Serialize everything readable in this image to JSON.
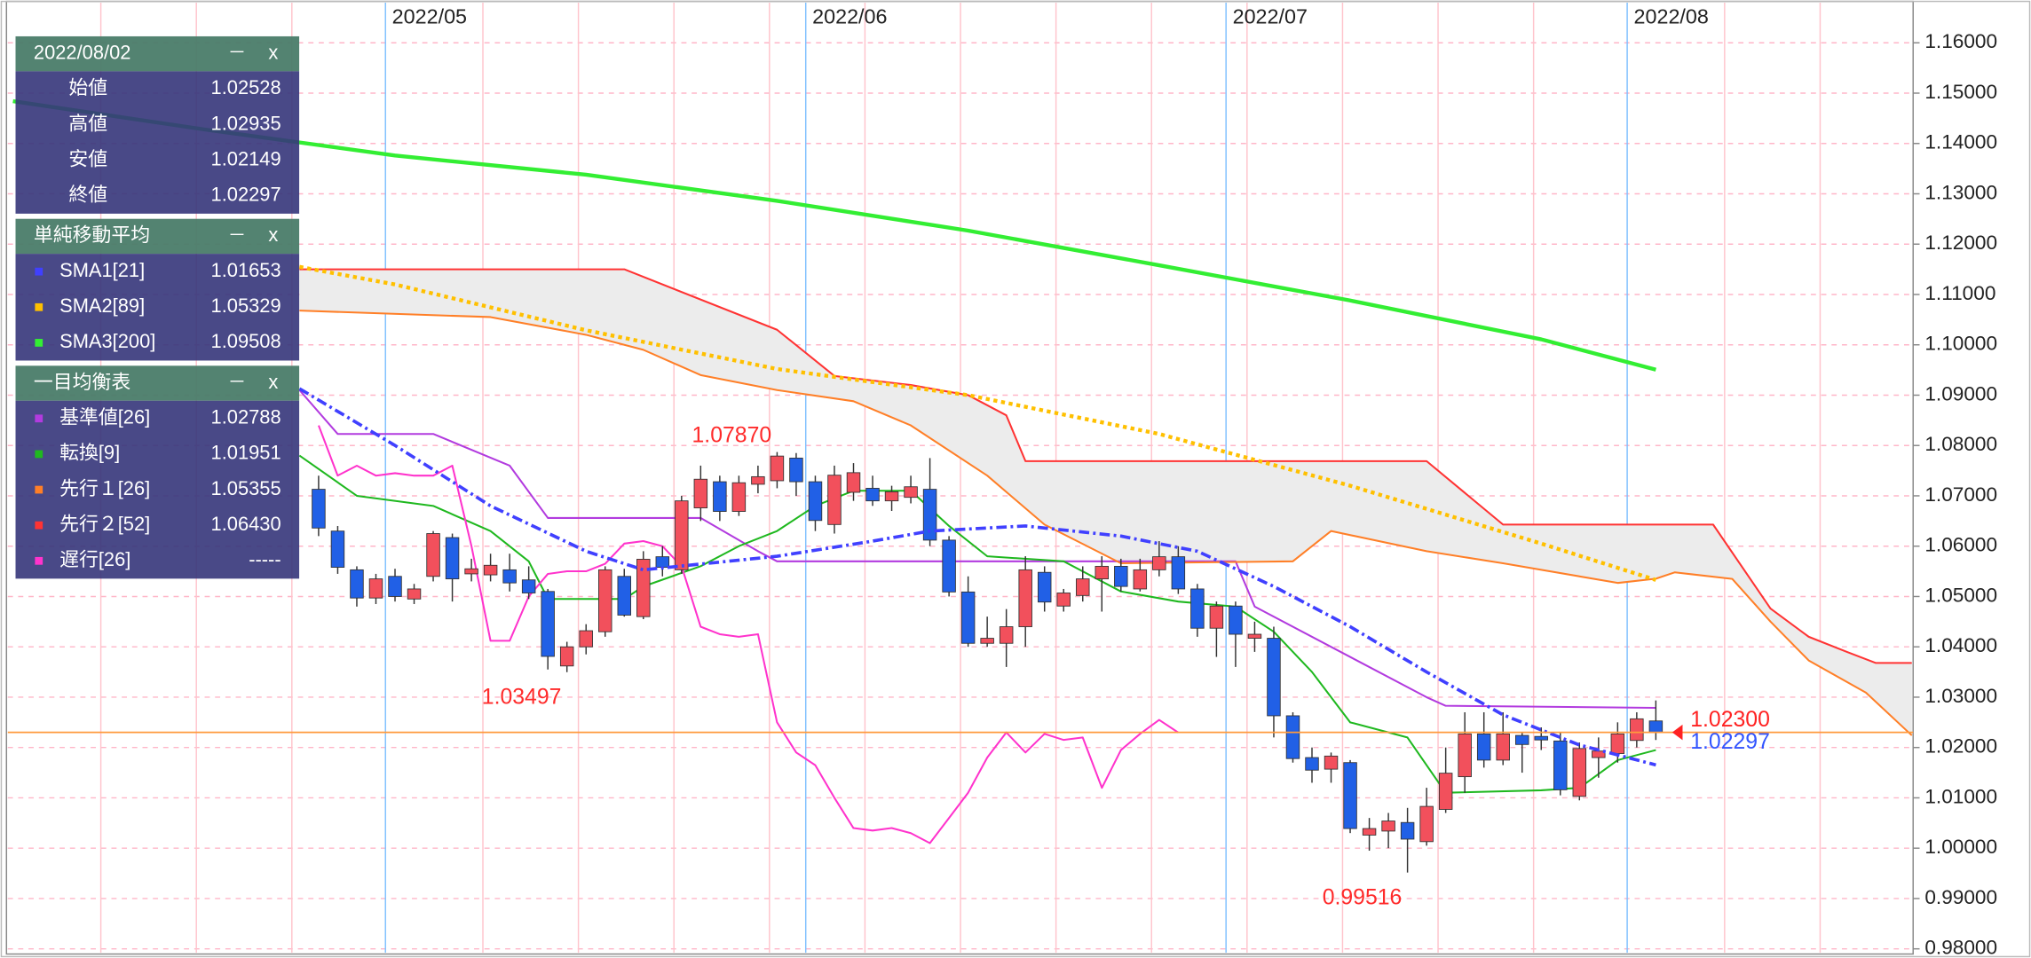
{
  "chart_data": {
    "type": "candlestick",
    "xlim": [
      0,
      99.4
    ],
    "ylim": [
      0.98,
      1.1672
    ],
    "yticks": [
      {
        "value": 0.98,
        "label": "0.98000"
      },
      {
        "value": 0.99,
        "label": "0.99000"
      },
      {
        "value": 1,
        "label": "1.00000"
      },
      {
        "value": 1.01,
        "label": "1.01000"
      },
      {
        "value": 1.02,
        "label": "1.02000"
      },
      {
        "value": 1.03,
        "label": "1.03000"
      },
      {
        "value": 1.04,
        "label": "1.04000"
      },
      {
        "value": 1.05,
        "label": "1.05000"
      },
      {
        "value": 1.06,
        "label": "1.06000"
      },
      {
        "value": 1.07,
        "label": "1.07000"
      },
      {
        "value": 1.08,
        "label": "1.08000"
      },
      {
        "value": 1.09,
        "label": "1.09000"
      },
      {
        "value": 1.1,
        "label": "1.10000"
      },
      {
        "value": 1.11,
        "label": "1.11000"
      },
      {
        "value": 1.12,
        "label": "1.12000"
      },
      {
        "value": 1.13,
        "label": "1.13000"
      },
      {
        "value": 1.14,
        "label": "1.14000"
      },
      {
        "value": 1.15,
        "label": "1.15000"
      },
      {
        "value": 1.16,
        "label": "1.16000"
      }
    ],
    "xticks": [
      {
        "value": 19.5,
        "label": "2022/05"
      },
      {
        "value": 41.5,
        "label": "2022/06"
      },
      {
        "value": 63.5,
        "label": "2022/07"
      },
      {
        "value": 84.5,
        "label": "2022/08"
      }
    ],
    "minor_xticks": [
      4.6,
      9.6,
      14.6,
      24.6,
      29.6,
      34.6,
      39.6,
      44.6,
      49.6,
      54.6,
      59.6,
      64.6,
      69.6,
      74.6,
      79.6,
      89.6,
      94.6
    ],
    "grid": true,
    "up_color": "#f2505c",
    "down_color": "#2160e6",
    "ohlc": {
      "x": [
        16,
        17,
        18,
        19,
        20,
        21,
        22,
        23,
        24,
        25,
        26,
        27,
        28,
        29,
        30,
        31,
        32,
        33,
        34,
        35,
        36,
        37,
        38,
        39,
        40,
        41,
        42,
        43,
        44,
        45,
        46,
        47,
        48,
        49,
        50,
        51,
        52,
        53,
        54,
        55,
        56,
        57,
        58,
        59,
        60,
        61,
        62,
        63,
        64,
        65,
        66,
        67,
        68,
        69,
        70,
        71,
        72,
        73,
        74,
        75,
        76,
        77,
        78,
        79,
        80,
        81,
        82,
        83,
        84,
        85,
        86
      ],
      "open": [
        1.0713,
        1.063,
        1.0553,
        1.0497,
        1.054,
        1.0495,
        1.054,
        1.0617,
        1.0545,
        1.0543,
        1.0553,
        1.0533,
        1.051,
        1.0362,
        1.04,
        1.043,
        1.054,
        1.046,
        1.0579,
        1.0553,
        1.0676,
        1.0728,
        1.0669,
        1.0723,
        1.073,
        1.0775,
        1.0728,
        1.0643,
        1.0707,
        1.0715,
        1.069,
        1.0697,
        1.0713,
        1.0612,
        1.0509,
        1.0407,
        1.0407,
        1.044,
        1.0548,
        1.0481,
        1.0502,
        1.0535,
        1.056,
        1.0515,
        1.0553,
        1.0579,
        1.0515,
        1.0437,
        1.0481,
        1.0417,
        1.0417,
        1.0263,
        1.018,
        1.0157,
        1.017,
        1.0026,
        1.0034,
        1.0051,
        1.0013,
        1.0077,
        1.0142,
        1.0227,
        1.0175,
        1.0224,
        1.0222,
        1.0213,
        1.0103,
        1.018,
        1.0188,
        1.0214,
        1.02528
      ],
      "high": [
        1.074,
        1.064,
        1.056,
        1.0545,
        1.0555,
        1.0525,
        1.063,
        1.0625,
        1.0575,
        1.0585,
        1.0585,
        1.056,
        1.0515,
        1.041,
        1.0445,
        1.056,
        1.0555,
        1.059,
        1.06,
        1.07,
        1.076,
        1.074,
        1.074,
        1.076,
        1.0787,
        1.0785,
        1.074,
        1.076,
        1.0765,
        1.074,
        1.072,
        1.074,
        1.0775,
        1.062,
        1.054,
        1.046,
        1.0475,
        1.058,
        1.056,
        1.0515,
        1.056,
        1.058,
        1.0575,
        1.0575,
        1.061,
        1.06,
        1.0525,
        1.049,
        1.049,
        1.045,
        1.044,
        1.027,
        1.02,
        1.019,
        1.0175,
        1.006,
        1.007,
        1.008,
        1.012,
        1.02,
        1.027,
        1.027,
        1.027,
        1.023,
        1.024,
        1.023,
        1.021,
        1.022,
        1.025,
        1.027,
        1.02935
      ],
      "low": [
        1.062,
        1.0545,
        1.048,
        1.0485,
        1.049,
        1.0485,
        1.053,
        1.049,
        1.053,
        1.053,
        1.051,
        1.0495,
        1.0355,
        1.03497,
        1.0385,
        1.042,
        1.046,
        1.0455,
        1.054,
        1.0545,
        1.065,
        1.065,
        1.066,
        1.0705,
        1.0715,
        1.07,
        1.063,
        1.0625,
        1.069,
        1.068,
        1.067,
        1.0685,
        1.06,
        1.05,
        1.04,
        1.04,
        1.036,
        1.04,
        1.047,
        1.047,
        1.049,
        1.047,
        1.051,
        1.051,
        1.054,
        1.0505,
        1.042,
        1.038,
        1.036,
        1.039,
        1.022,
        1.017,
        1.013,
        1.013,
        1.003,
        0.9995,
        1.0,
        0.99516,
        1.0005,
        1.007,
        1.011,
        1.016,
        1.0165,
        1.015,
        1.0195,
        1.0105,
        1.0095,
        1.014,
        1.017,
        1.02,
        1.02149
      ],
      "close": [
        1.0636,
        1.0558,
        1.0497,
        1.0535,
        1.05,
        1.0515,
        1.0625,
        1.0535,
        1.0555,
        1.0562,
        1.0527,
        1.0507,
        1.0381,
        1.04,
        1.0432,
        1.0553,
        1.0463,
        1.0574,
        1.0558,
        1.069,
        1.0733,
        1.0669,
        1.0726,
        1.0738,
        1.0779,
        1.0728,
        1.0651,
        1.0741,
        1.0746,
        1.069,
        1.0708,
        1.0718,
        1.0612,
        1.0509,
        1.0407,
        1.0417,
        1.044,
        1.0553,
        1.0489,
        1.0507,
        1.0535,
        1.056,
        1.052,
        1.0553,
        1.0579,
        1.0515,
        1.0437,
        1.0481,
        1.0425,
        1.0425,
        1.0263,
        1.0178,
        1.0155,
        1.0183,
        1.0039,
        1.0039,
        1.0054,
        1.0018,
        1.0083,
        1.0149,
        1.0227,
        1.0175,
        1.0227,
        1.0206,
        1.0215,
        1.0116,
        1.0198,
        1.0193,
        1.0227,
        1.0257,
        1.02297
      ]
    },
    "series": [
      {
        "name": "SMA1[21]",
        "color": "#4040ff",
        "style": "dashdot",
        "legend_value": 1.01653,
        "x": [
          15,
          20,
          25,
          30,
          33,
          40,
          45,
          48,
          53,
          58,
          62,
          66,
          70,
          74,
          78,
          82,
          86
        ],
        "values": [
          1.0913,
          1.08,
          1.068,
          1.059,
          1.0553,
          1.058,
          1.061,
          1.063,
          1.064,
          1.062,
          1.059,
          1.052,
          1.044,
          1.035,
          1.0265,
          1.0205,
          1.01653
        ]
      },
      {
        "name": "SMA2[89]",
        "color": "#ffc000",
        "style": "dotted",
        "legend_value": 1.05329,
        "x": [
          15,
          20,
          30,
          40,
          50,
          60,
          70,
          80,
          86
        ],
        "values": [
          1.1155,
          1.112,
          1.1029,
          1.0952,
          1.09,
          1.0823,
          1.072,
          1.0605,
          1.05329
        ]
      },
      {
        "name": "SMA3[200]",
        "color": "#33ee33",
        "style": "thick",
        "legend_value": 1.09508,
        "x": [
          0,
          10,
          20,
          30,
          40,
          50,
          60,
          70,
          80,
          86
        ],
        "values": [
          1.1484,
          1.1428,
          1.1376,
          1.1338,
          1.1286,
          1.1227,
          1.1158,
          1.1088,
          1.1011,
          1.09508
        ]
      },
      {
        "name": "基準値[26]",
        "color": "#b23bdf",
        "style": "solid",
        "legend_value": 1.02788,
        "x": [
          15,
          17,
          22,
          26,
          28,
          36,
          39,
          40,
          64,
          65,
          74,
          75,
          86
        ],
        "values": [
          1.091,
          1.0823,
          1.0823,
          1.076,
          1.0656,
          1.0656,
          1.059,
          1.057,
          1.057,
          1.048,
          1.03,
          1.0283,
          1.02788
        ]
      },
      {
        "name": "転換[9]",
        "color": "#1fb81f",
        "style": "solid",
        "legend_value": 1.01951,
        "x": [
          15,
          18,
          22,
          25,
          27,
          28,
          32,
          33,
          36,
          38,
          40,
          42,
          44,
          47,
          49,
          51,
          55,
          58,
          61,
          64,
          66,
          68,
          70,
          73,
          75,
          80,
          82,
          84,
          86
        ],
        "values": [
          1.078,
          1.07,
          1.068,
          1.063,
          1.057,
          1.0495,
          1.0495,
          1.052,
          1.056,
          1.06,
          1.063,
          1.068,
          1.071,
          1.071,
          1.064,
          1.058,
          1.057,
          1.051,
          1.049,
          1.048,
          1.043,
          1.035,
          1.025,
          1.022,
          1.011,
          1.0115,
          1.012,
          1.0175,
          1.01951
        ]
      },
      {
        "name": "先行１[26]",
        "color": "#ff7f27",
        "style": "solid",
        "legend_value": 1.05355,
        "x": [
          15,
          25,
          30,
          33,
          36,
          40,
          44,
          47,
          51,
          54,
          58,
          67,
          69,
          74,
          78,
          84,
          86,
          87,
          90,
          92,
          94,
          97,
          99.4
        ],
        "values": [
          1.1068,
          1.1055,
          1.102,
          1.099,
          1.094,
          1.091,
          1.0888,
          1.084,
          1.074,
          1.0643,
          1.0566,
          1.057,
          1.063,
          1.059,
          1.0566,
          1.0527,
          1.05355,
          1.0548,
          1.0535,
          1.045,
          1.0373,
          1.0309,
          1.0224
        ]
      },
      {
        "name": "先行２[52]",
        "color": "#ff3333",
        "style": "solid",
        "legend_value": "1.06430",
        "x": [
          15,
          32,
          40,
          43,
          47,
          50,
          52,
          53,
          74,
          78,
          89,
          92,
          94,
          96,
          97.5,
          99.4
        ],
        "values": [
          1.115,
          1.115,
          1.103,
          1.0938,
          1.092,
          1.09,
          1.086,
          1.0769,
          1.0769,
          1.0643,
          1.0643,
          1.0476,
          1.042,
          1.039,
          1.0368,
          1.0368
        ]
      },
      {
        "name": "遅行[26]",
        "color": "#ff33cc",
        "style": "solid",
        "legend_value": "-----",
        "x": [
          16,
          17,
          18,
          19,
          20,
          21,
          22,
          23,
          24,
          25,
          26,
          27,
          28,
          29,
          30,
          31,
          32,
          33,
          34,
          35,
          36,
          37,
          38,
          39,
          40,
          41,
          42,
          43,
          44,
          45,
          46,
          47,
          48,
          49,
          50,
          51,
          52,
          53,
          54,
          55,
          56,
          57,
          58,
          59,
          60,
          61
        ],
        "values": [
          1.084,
          1.074,
          1.076,
          1.074,
          1.0745,
          1.074,
          1.074,
          1.076,
          1.06,
          1.0412,
          1.0412,
          1.05,
          1.0545,
          1.055,
          1.055,
          1.0565,
          1.0605,
          1.061,
          1.06,
          1.056,
          1.044,
          1.0425,
          1.042,
          1.0425,
          1.025,
          1.019,
          1.0165,
          1.01,
          1.004,
          1.0035,
          1.004,
          1.003,
          1.001,
          1.006,
          1.011,
          1.018,
          1.023,
          1.019,
          1.0227,
          1.0215,
          1.022,
          1.012,
          1.0195,
          1.0227,
          1.0255,
          1.02297
        ]
      }
    ],
    "cloud": {
      "between": [
        5,
        6
      ],
      "color": "#ececec"
    },
    "annotations": [
      {
        "label": "1.07870",
        "value": 1.0787,
        "x": 40,
        "position": "above"
      },
      {
        "label": "1.03497",
        "value": 1.03497,
        "x": 29,
        "position": "below"
      },
      {
        "label": "0.99516",
        "value": 0.99516,
        "x": 73,
        "position": "below"
      }
    ],
    "price_lines": [
      {
        "label": "1.02300",
        "value": 1.023,
        "color": "#ff2222"
      },
      {
        "label": "1.02297",
        "value": 1.02297,
        "color": "#3355ff"
      }
    ],
    "info_panel": {
      "controls": [
        "－",
        "x"
      ],
      "date": "2022/08/02",
      "rows": [
        {
          "label": "始値",
          "value": 1.02528
        },
        {
          "label": "高値",
          "value": 1.02935
        },
        {
          "label": "安値",
          "value": 1.02149
        },
        {
          "label": "終値",
          "value": 1.02297
        }
      ],
      "sections": [
        {
          "title": "単純移動平均",
          "series": [
            0,
            1,
            2
          ]
        },
        {
          "title": "一目均衡表",
          "series": [
            3,
            4,
            5,
            6,
            7
          ]
        }
      ]
    }
  }
}
